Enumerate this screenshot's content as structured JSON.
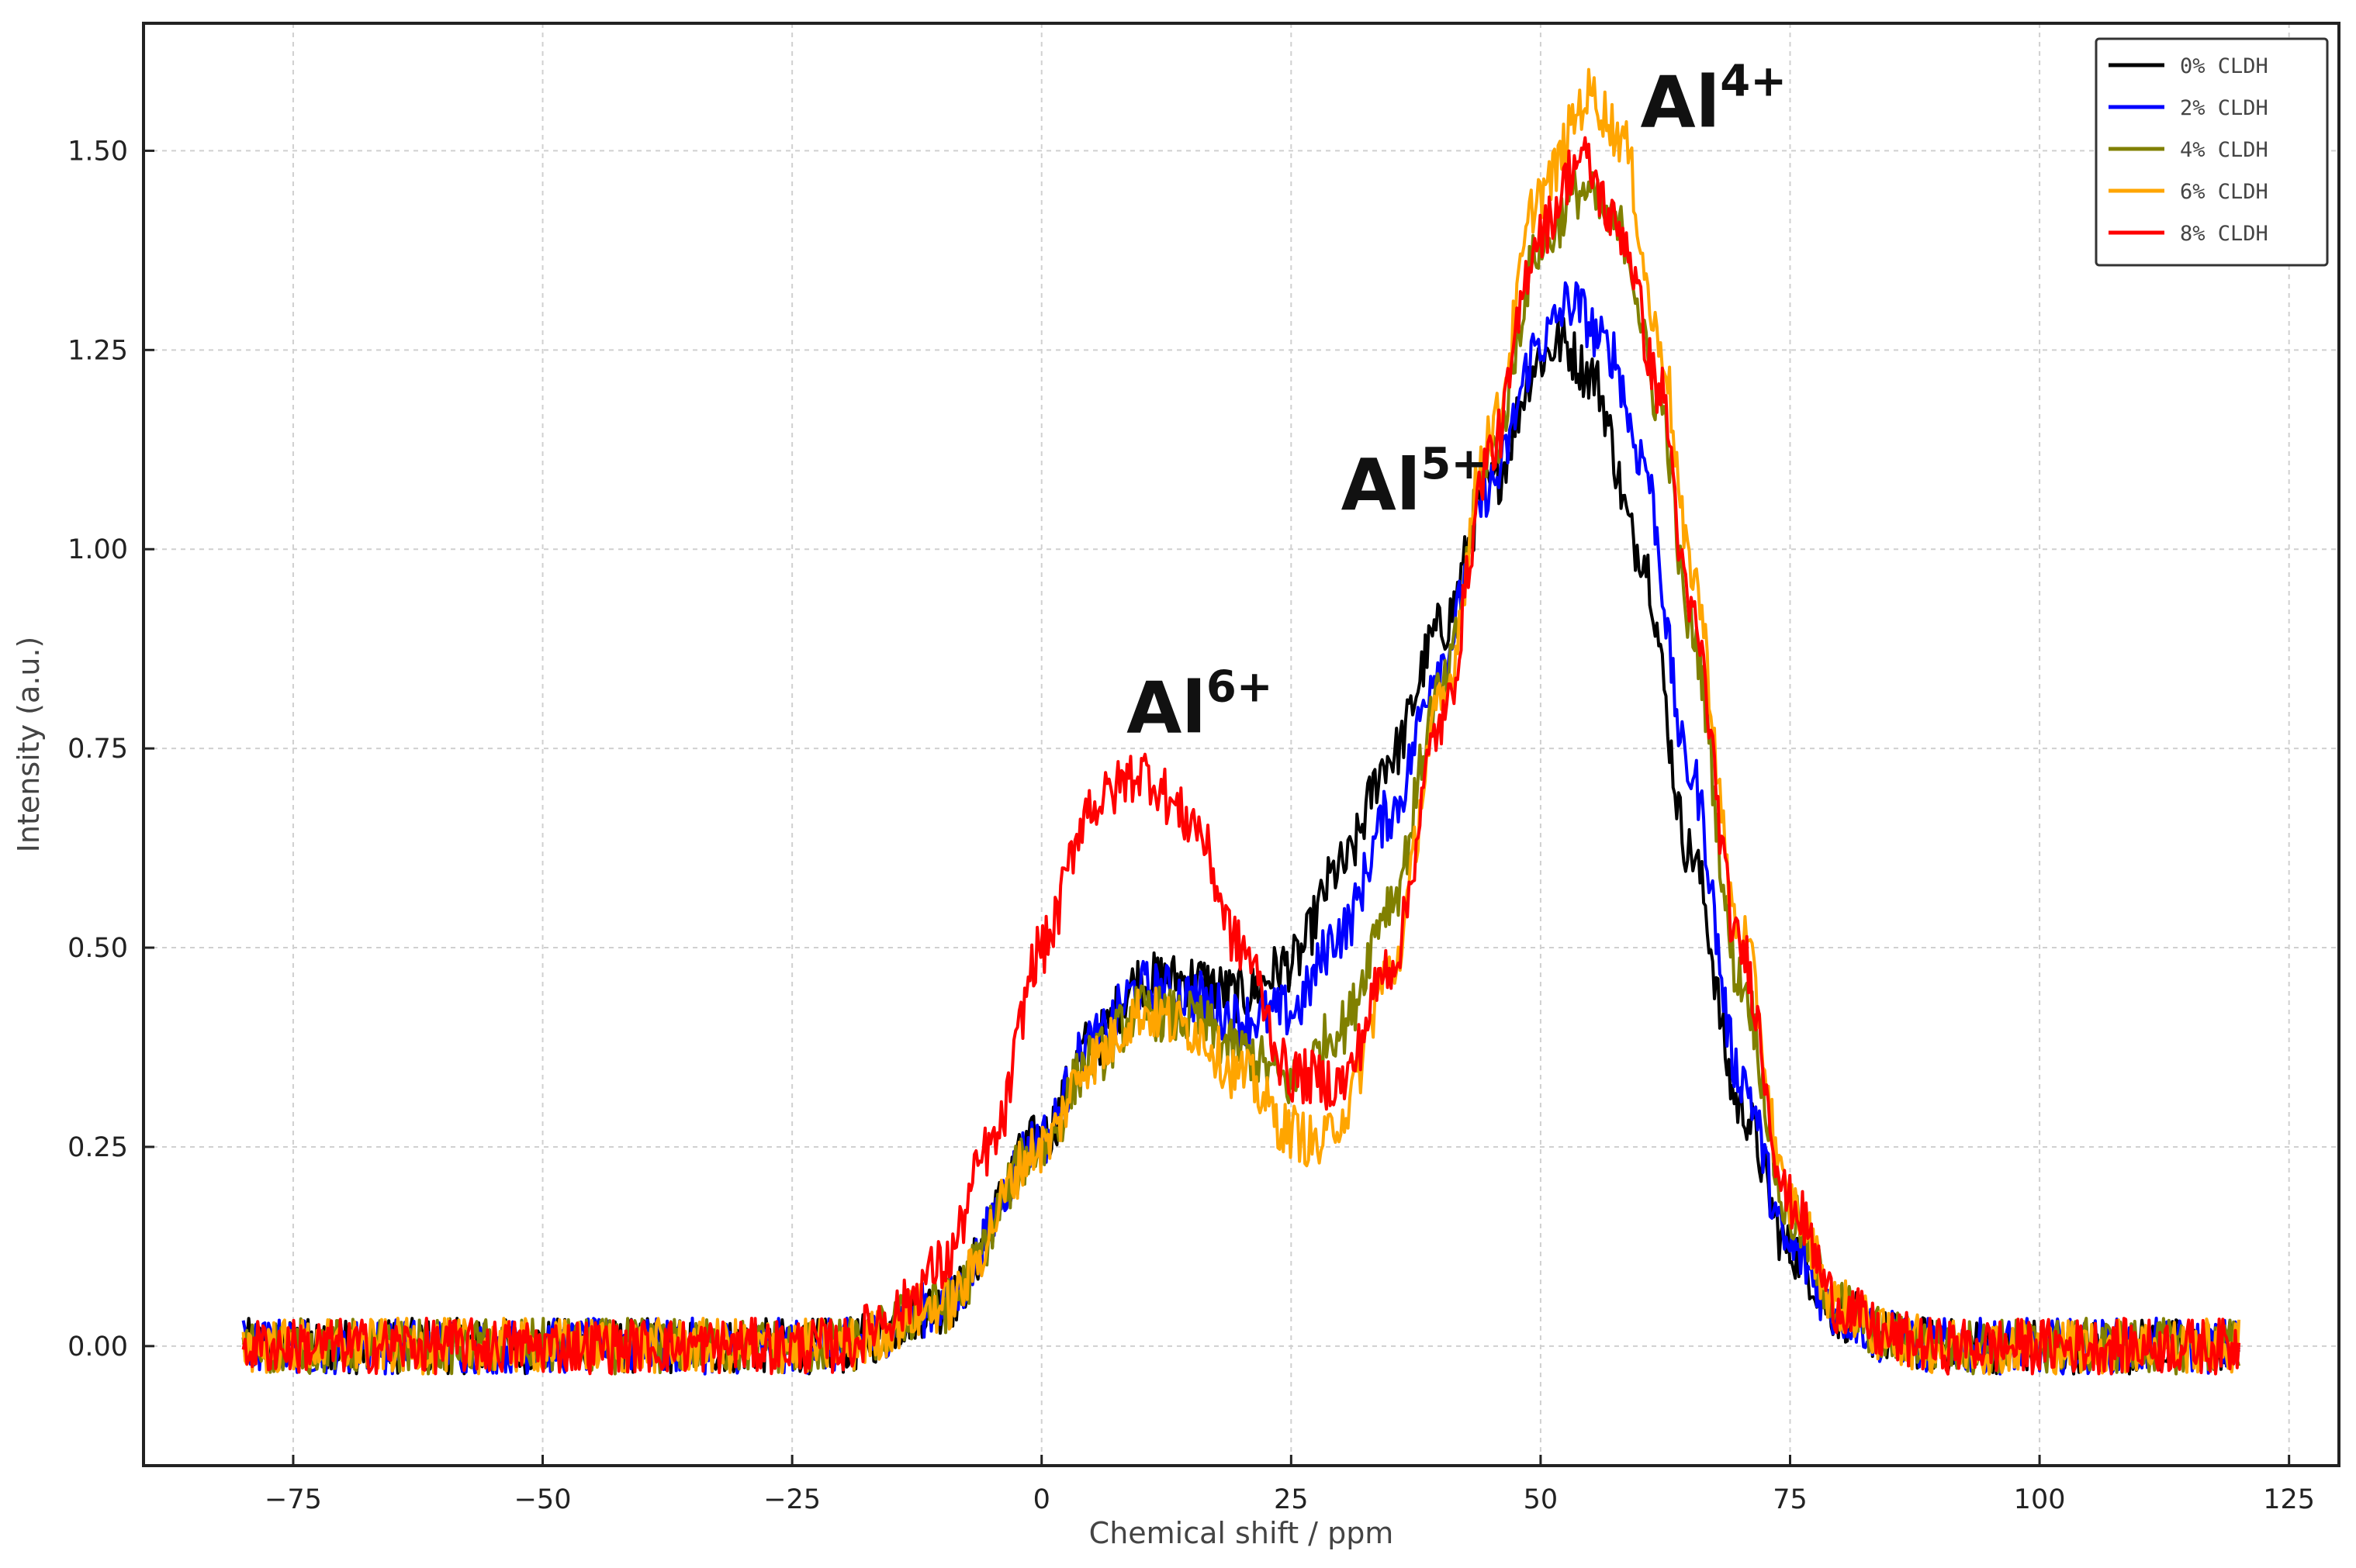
{
  "chart_data": {
    "type": "line",
    "title": "",
    "xlabel": "Chemical shift / ppm",
    "ylabel": "Intensity (a.u.)",
    "xlim": [
      -90,
      130
    ],
    "ylim": [
      -0.15,
      1.66
    ],
    "xticks": [
      -75,
      -50,
      -25,
      0,
      25,
      50,
      75,
      100,
      125
    ],
    "xtick_labels": [
      "−75",
      "−50",
      "−25",
      "0",
      "25",
      "50",
      "75",
      "100",
      "125"
    ],
    "yticks": [
      0.0,
      0.25,
      0.5,
      0.75,
      1.0,
      1.25,
      1.5
    ],
    "ytick_labels": [
      "0.00",
      "0.25",
      "0.50",
      "0.75",
      "1.00",
      "1.25",
      "1.50"
    ],
    "grid": true,
    "legend_position": "top-right",
    "noise_amplitude": 0.035,
    "annotations": [
      {
        "base": "Al",
        "sup": "6+",
        "x": 8.5,
        "y": 0.77
      },
      {
        "base": "Al",
        "sup": "5+",
        "x": 30,
        "y": 1.05
      },
      {
        "base": "Al",
        "sup": "4+",
        "x": 60,
        "y": 1.53
      }
    ],
    "series": [
      {
        "name": "0% CLDH",
        "color": "#000000",
        "x": [
          -80,
          -20,
          -10,
          0,
          5,
          10,
          15,
          20,
          25,
          30,
          35,
          40,
          45,
          50,
          52,
          55,
          60,
          65,
          70,
          75,
          80,
          85,
          90,
          100,
          120
        ],
        "y": [
          0.0,
          0.0,
          0.05,
          0.26,
          0.38,
          0.46,
          0.46,
          0.44,
          0.48,
          0.6,
          0.74,
          0.9,
          1.08,
          1.24,
          1.26,
          1.22,
          1.0,
          0.62,
          0.3,
          0.12,
          0.04,
          0.01,
          0.0,
          0.0,
          0.0
        ]
      },
      {
        "name": "2% CLDH",
        "color": "#0000ff",
        "x": [
          -80,
          -20,
          -10,
          0,
          5,
          10,
          15,
          20,
          25,
          30,
          35,
          40,
          45,
          50,
          53,
          57,
          60,
          65,
          70,
          75,
          80,
          85,
          90,
          100,
          120
        ],
        "y": [
          0.0,
          0.0,
          0.05,
          0.26,
          0.38,
          0.45,
          0.44,
          0.41,
          0.42,
          0.52,
          0.67,
          0.86,
          1.08,
          1.26,
          1.31,
          1.25,
          1.12,
          0.72,
          0.34,
          0.12,
          0.04,
          0.01,
          0.0,
          0.0,
          0.0
        ]
      },
      {
        "name": "4% CLDH",
        "color": "#808000",
        "x": [
          -80,
          -20,
          -10,
          0,
          5,
          10,
          15,
          20,
          25,
          30,
          35,
          40,
          45,
          50,
          54,
          58,
          62,
          65,
          70,
          75,
          80,
          85,
          90,
          100,
          120
        ],
        "y": [
          0.0,
          0.0,
          0.05,
          0.25,
          0.36,
          0.42,
          0.41,
          0.37,
          0.33,
          0.4,
          0.56,
          0.82,
          1.12,
          1.38,
          1.45,
          1.4,
          1.18,
          0.9,
          0.46,
          0.16,
          0.05,
          0.01,
          0.0,
          0.0,
          0.0
        ]
      },
      {
        "name": "6% CLDH",
        "color": "#ffa500",
        "x": [
          -80,
          -20,
          -10,
          0,
          5,
          10,
          15,
          20,
          25,
          28,
          30,
          35,
          40,
          45,
          50,
          55,
          58,
          62,
          65,
          70,
          75,
          80,
          85,
          90,
          100,
          120
        ],
        "y": [
          0.0,
          0.0,
          0.05,
          0.25,
          0.36,
          0.42,
          0.4,
          0.34,
          0.27,
          0.25,
          0.29,
          0.47,
          0.8,
          1.15,
          1.45,
          1.57,
          1.52,
          1.26,
          0.98,
          0.52,
          0.18,
          0.05,
          0.01,
          0.0,
          0.0,
          0.0
        ]
      },
      {
        "name": "8% CLDH",
        "color": "#ff0000",
        "x": [
          -80,
          -20,
          -15,
          -10,
          -5,
          0,
          5,
          10,
          15,
          20,
          25,
          30,
          35,
          40,
          45,
          50,
          54,
          58,
          62,
          65,
          70,
          75,
          80,
          85,
          90,
          100,
          120
        ],
        "y": [
          0.0,
          0.0,
          0.04,
          0.1,
          0.25,
          0.5,
          0.68,
          0.72,
          0.66,
          0.5,
          0.34,
          0.33,
          0.48,
          0.78,
          1.12,
          1.4,
          1.49,
          1.4,
          1.2,
          0.92,
          0.5,
          0.18,
          0.05,
          0.01,
          0.0,
          0.0,
          0.0
        ]
      }
    ]
  }
}
